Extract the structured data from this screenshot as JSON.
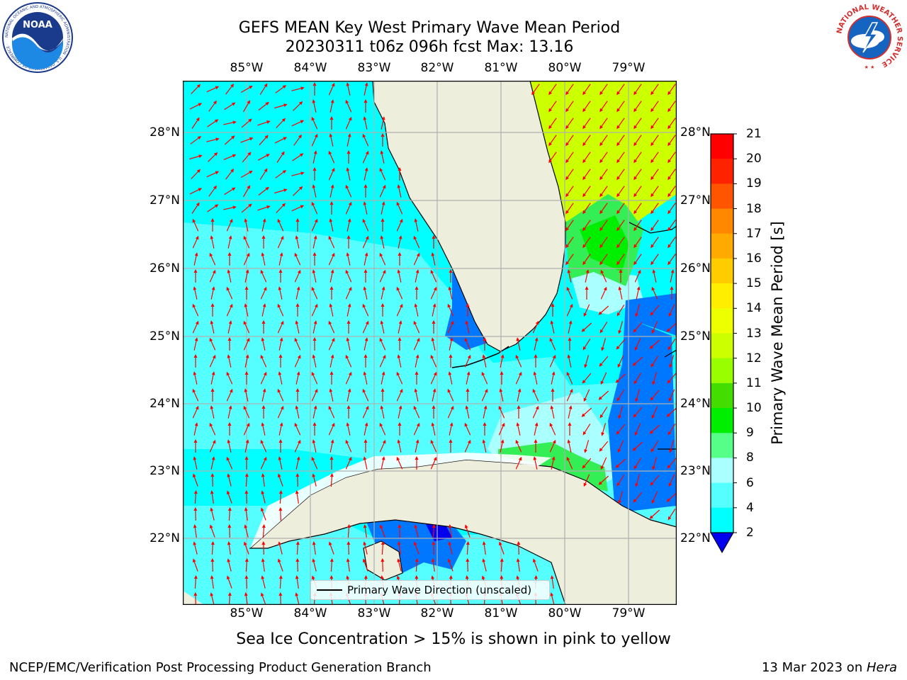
{
  "title": {
    "line1": "GEFS MEAN Key West Primary Wave Mean Period",
    "line2": "20230311 t06z 096h fcst   Max: 13.16"
  },
  "map": {
    "lon_labels": [
      "85°W",
      "84°W",
      "83°W",
      "82°W",
      "81°W",
      "80°W",
      "79°W"
    ],
    "lat_labels": [
      "28°N",
      "27°N",
      "26°N",
      "25°N",
      "24°N",
      "23°N",
      "22°N"
    ],
    "legend_text": "Primary Wave Direction (unscaled)",
    "colors": {
      "land": "#eeeedd",
      "ocean_4_6": "#00ffff",
      "ocean_6_8": "#55ffff",
      "ocean_8_9": "#aaffff",
      "ocean_2_4": "#0077ff",
      "green": "#33ee55",
      "yellow_green": "#ccff00",
      "arrow": "#ff0000",
      "grid": "#b0b0b0"
    }
  },
  "colorbar": {
    "label": "Primary Wave Mean Period [s]",
    "ticks": [
      "21",
      "20",
      "19",
      "18",
      "17",
      "16",
      "15",
      "14",
      "13",
      "12",
      "11",
      "10",
      "9",
      "8",
      "6",
      "4",
      "2"
    ],
    "colors": [
      "#ff0000",
      "#ff2200",
      "#ff5500",
      "#ff8800",
      "#ffaa00",
      "#ffcc00",
      "#ffee00",
      "#eeff00",
      "#ccff00",
      "#99ff00",
      "#44dd00",
      "#00ee00",
      "#55ff88",
      "#aaffff",
      "#55ffff",
      "#00ffff",
      "#0077ff"
    ],
    "under_color": "#0000ee"
  },
  "note": "Sea Ice Concentration > 15% is shown in pink to yellow",
  "footer": {
    "left": "NCEP/EMC/Verification Post Processing Product Generation Branch",
    "right_date": "13 Mar 2023 on ",
    "right_host": "Hera"
  },
  "logos": {
    "noaa_text": "NOAA",
    "noaa_ring": "NATIONAL OCEANIC AND ATMOSPHERIC ADMINISTRATION · U.S. DEPARTMENT OF COMMERCE ·",
    "nws_ring": "NATIONAL WEATHER SERVICE"
  }
}
